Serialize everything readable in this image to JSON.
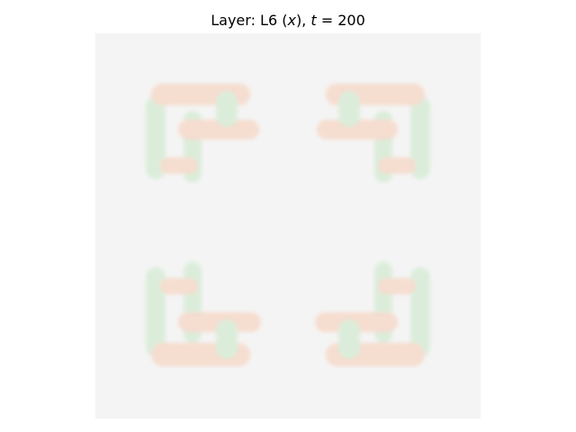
{
  "title": {
    "prefix": "Layer: L6 (",
    "var": "x",
    "middle": "), ",
    "time_var": "t",
    "suffix": " = 200"
  },
  "colors": {
    "background": "#f4f4f4",
    "positive": "#f6d9c9",
    "negative": "#d7ecd6"
  }
}
